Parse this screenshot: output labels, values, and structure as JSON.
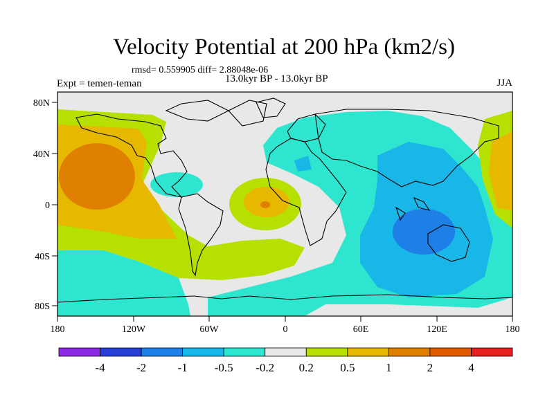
{
  "title": "Velocity Potential at 200 hPa (km2/s)",
  "stats": "rmsd= 0.559905 diff= 2.88048e-06",
  "experiment": "Expt = temen-teman",
  "period": "13.0kyr BP - 13.0kyr BP",
  "season": "JJA",
  "lat_labels": [
    "80N",
    "40N",
    "0",
    "40S",
    "80S"
  ],
  "lon_labels": [
    "180",
    "120W",
    "60W",
    "0",
    "60E",
    "120E",
    "180"
  ],
  "colorbar": {
    "colors": [
      "#8a2be2",
      "#2a3fd6",
      "#1e7fe6",
      "#19b6e8",
      "#2ee6cf",
      "#e8e8e8",
      "#b6e000",
      "#e6b800",
      "#e08000",
      "#e05a00",
      "#e62020"
    ],
    "labels": [
      "-4",
      "-2",
      "-1",
      "-0.5",
      "-0.2",
      "0.2",
      "0.5",
      "1",
      "2",
      "4"
    ]
  }
}
